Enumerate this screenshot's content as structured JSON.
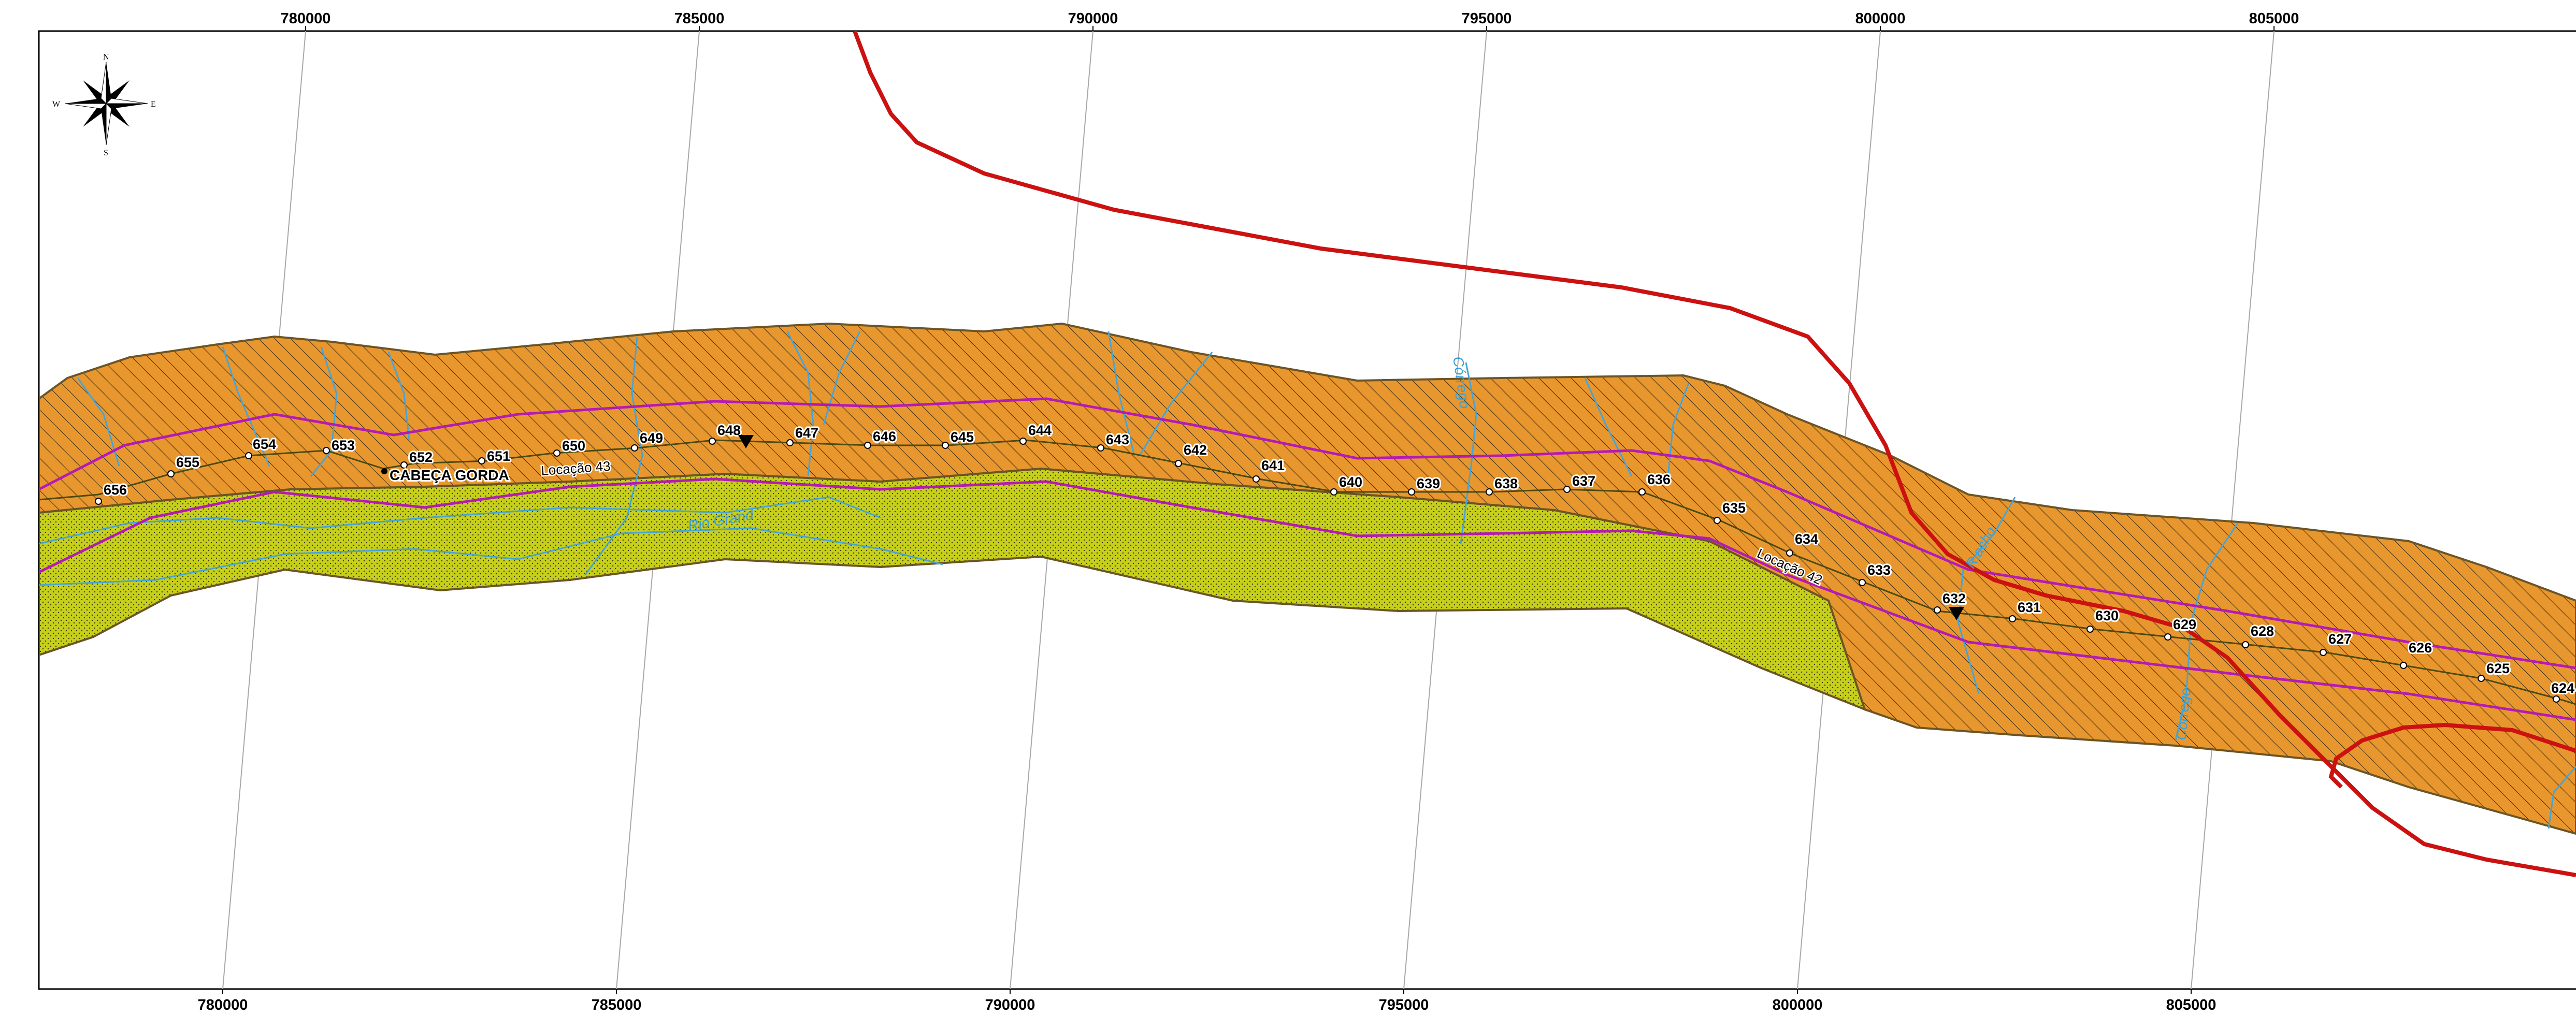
{
  "top_ticks": [
    "780000",
    "785000",
    "790000",
    "795000",
    "800000",
    "805000"
  ],
  "bottom_ticks": [
    "780000",
    "785000",
    "790000",
    "795000",
    "800000",
    "805000"
  ],
  "compass": {
    "n": "N",
    "s": "S",
    "e": "E",
    "w": "W"
  },
  "stations": [
    "656",
    "655",
    "654",
    "653",
    "652",
    "651",
    "650",
    "649",
    "648",
    "647",
    "646",
    "645",
    "644",
    "643",
    "642",
    "641",
    "640",
    "639",
    "638",
    "637",
    "636",
    "635",
    "634",
    "633",
    "632",
    "631",
    "630",
    "629",
    "628",
    "627",
    "626",
    "625",
    "624"
  ],
  "place_label": "CABEÇA GORDA",
  "route_labels": [
    "Locação 43",
    "Locação 42"
  ],
  "rivers": {
    "rio": "Rio Grand",
    "c1": "Córrego",
    "c2": "Riacho",
    "c3": "Córrego"
  },
  "colors": {
    "orange_zone": "#e8962e",
    "green_zone": "#c6cf1c",
    "zone_border": "#6b5526",
    "magenta": "#b41ab4",
    "red_route": "#cc1111",
    "water": "#45a4d8",
    "grid": "#a8a8a8"
  }
}
